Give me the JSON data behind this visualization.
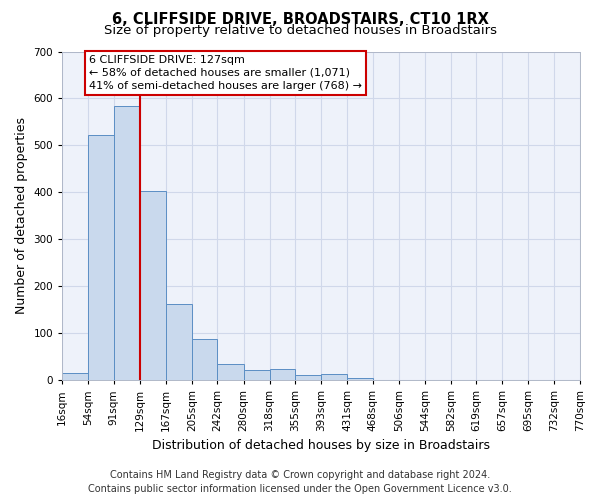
{
  "title": "6, CLIFFSIDE DRIVE, BROADSTAIRS, CT10 1RX",
  "subtitle": "Size of property relative to detached houses in Broadstairs",
  "xlabel": "Distribution of detached houses by size in Broadstairs",
  "ylabel": "Number of detached properties",
  "bar_color": "#c9d9ed",
  "bar_edge_color": "#5b8ec4",
  "grid_color": "#d0d8ea",
  "background_color": "#eef2fa",
  "bins": [
    16,
    54,
    91,
    129,
    167,
    205,
    242,
    280,
    318,
    355,
    393,
    431,
    468,
    506,
    544,
    582,
    619,
    657,
    695,
    732,
    770
  ],
  "bin_labels": [
    "16sqm",
    "54sqm",
    "91sqm",
    "129sqm",
    "167sqm",
    "205sqm",
    "242sqm",
    "280sqm",
    "318sqm",
    "355sqm",
    "393sqm",
    "431sqm",
    "468sqm",
    "506sqm",
    "544sqm",
    "582sqm",
    "619sqm",
    "657sqm",
    "695sqm",
    "732sqm",
    "770sqm"
  ],
  "values": [
    15,
    522,
    584,
    402,
    162,
    87,
    35,
    22,
    24,
    10,
    12,
    5,
    0,
    0,
    0,
    0,
    0,
    0,
    0,
    0
  ],
  "ylim": [
    0,
    700
  ],
  "yticks": [
    0,
    100,
    200,
    300,
    400,
    500,
    600,
    700
  ],
  "property_line_x": 129,
  "annotation_line1": "6 CLIFFSIDE DRIVE: 127sqm",
  "annotation_line2": "← 58% of detached houses are smaller (1,071)",
  "annotation_line3": "41% of semi-detached houses are larger (768) →",
  "annotation_box_color": "#ffffff",
  "annotation_box_edge_color": "#cc0000",
  "annotation_text_color": "#000000",
  "vertical_line_color": "#cc0000",
  "footer_line1": "Contains HM Land Registry data © Crown copyright and database right 2024.",
  "footer_line2": "Contains public sector information licensed under the Open Government Licence v3.0.",
  "title_fontsize": 10.5,
  "subtitle_fontsize": 9.5,
  "ylabel_fontsize": 9,
  "xlabel_fontsize": 9,
  "tick_fontsize": 7.5,
  "annotation_fontsize": 8,
  "footer_fontsize": 7
}
